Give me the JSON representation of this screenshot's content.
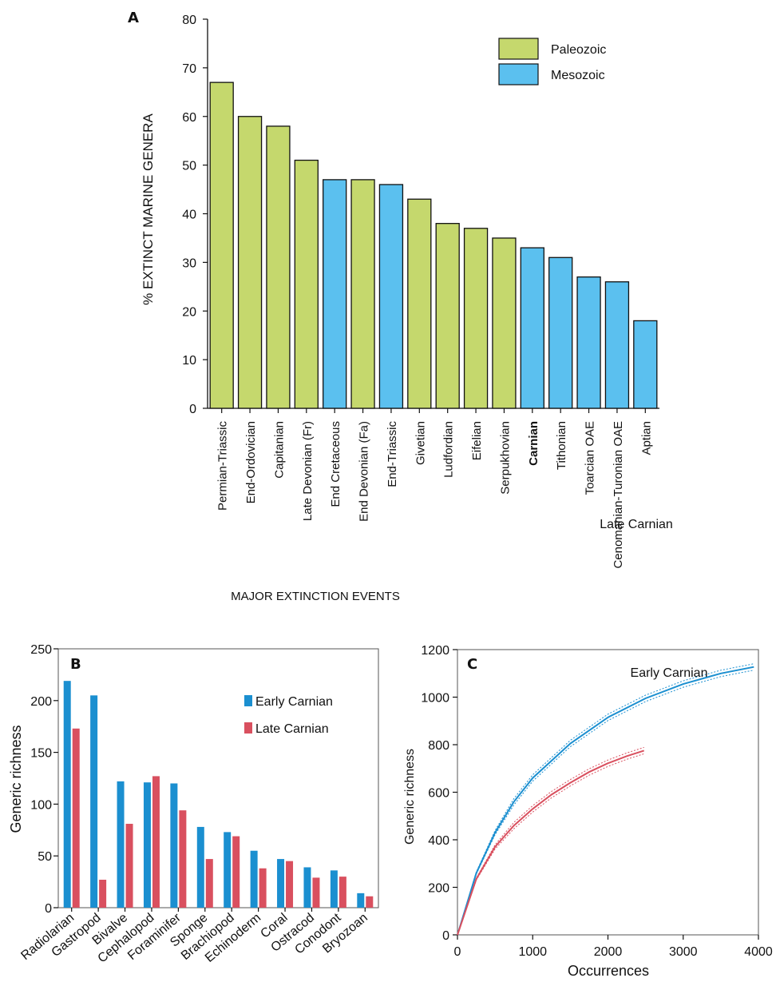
{
  "panels": {
    "a": {
      "letter": "A"
    },
    "b": {
      "letter": "B"
    },
    "c": {
      "letter": "C"
    }
  },
  "chart_data": [
    {
      "type": "bar",
      "panel": "A",
      "xlabel": "MAJOR EXTINCTION EVENTS",
      "ylabel": "% EXTINCT MARINE GENERA",
      "ylim": [
        0,
        80
      ],
      "yticks": [
        0,
        10,
        20,
        30,
        40,
        50,
        60,
        70,
        80
      ],
      "categories": [
        "Permian-Triassic",
        "End-Ordovician",
        "Capitanian",
        "Late Devonian (Fr)",
        "End Cretaceous",
        "End Devonian (Fa)",
        "End-Triassic",
        "Givetian",
        "Ludfordian",
        "Eifelian",
        "Serpukhovian",
        "Carnian",
        "Tithonian",
        "Toarcian OAE",
        "Cenomanian-Turonian OAE",
        "Aptian"
      ],
      "values": [
        67,
        60,
        58,
        51,
        47,
        47,
        46,
        43,
        38,
        37,
        35,
        33,
        31,
        27,
        26,
        18
      ],
      "era": [
        "Paleozoic",
        "Paleozoic",
        "Paleozoic",
        "Paleozoic",
        "Mesozoic",
        "Paleozoic",
        "Mesozoic",
        "Paleozoic",
        "Paleozoic",
        "Paleozoic",
        "Paleozoic",
        "Mesozoic",
        "Mesozoic",
        "Mesozoic",
        "Mesozoic",
        "Mesozoic"
      ],
      "bold_category": "Carnian",
      "legend": [
        {
          "name": "Paleozoic",
          "color": "#c5d86d"
        },
        {
          "name": "Mesozoic",
          "color": "#5bc0ef"
        }
      ],
      "legend_position": "top-right",
      "grid": false
    },
    {
      "type": "bar",
      "panel": "B",
      "ylabel": "Generic richness",
      "ylim": [
        0,
        250
      ],
      "yticks": [
        0,
        50,
        100,
        150,
        200,
        250
      ],
      "categories": [
        "Radiolarian",
        "Gastropod",
        "Bivalve",
        "Cephalopod",
        "Foraminifer",
        "Sponge",
        "Brachiopod",
        "Echinoderm",
        "Coral",
        "Ostracod",
        "Conodont",
        "Bryozoan"
      ],
      "series": [
        {
          "name": "Early Carnian",
          "color": "#1b8fd0",
          "values": [
            219,
            205,
            122,
            121,
            120,
            78,
            73,
            55,
            47,
            39,
            36,
            14
          ]
        },
        {
          "name": "Late Carnian",
          "color": "#d9505f",
          "values": [
            173,
            27,
            81,
            127,
            94,
            47,
            69,
            38,
            45,
            29,
            30,
            11
          ]
        }
      ],
      "legend_position": "top-right",
      "grid": false
    },
    {
      "type": "line",
      "panel": "C",
      "xlabel": "Occurrences",
      "ylabel": "Generic richness",
      "xlim": [
        0,
        4000
      ],
      "ylim": [
        0,
        1200
      ],
      "xticks": [
        0,
        1000,
        2000,
        3000,
        4000
      ],
      "yticks": [
        0,
        200,
        400,
        600,
        800,
        1000,
        1200
      ],
      "series": [
        {
          "name": "Early Carnian",
          "color": "#1b8fd0",
          "x": [
            0,
            250,
            500,
            750,
            1000,
            1500,
            2000,
            2500,
            3000,
            3500,
            3940
          ],
          "y": [
            0,
            260,
            430,
            560,
            660,
            805,
            915,
            995,
            1055,
            1100,
            1127
          ]
        },
        {
          "name": "Late Carnian",
          "color": "#d9505f",
          "x": [
            0,
            250,
            500,
            750,
            1000,
            1250,
            1500,
            1750,
            2000,
            2250,
            2480
          ],
          "y": [
            0,
            235,
            370,
            460,
            530,
            590,
            640,
            685,
            722,
            752,
            775
          ]
        }
      ],
      "confidence_bands": true,
      "grid": false
    }
  ]
}
